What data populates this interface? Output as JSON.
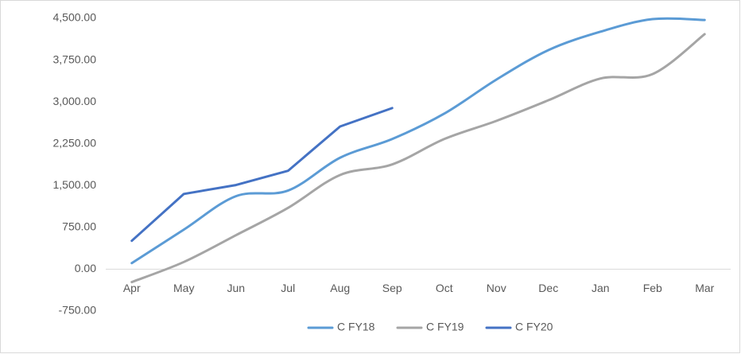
{
  "chart_data": {
    "type": "line",
    "categories": [
      "Apr",
      "May",
      "Jun",
      "Jul",
      "Aug",
      "Sep",
      "Oct",
      "Nov",
      "Dec",
      "Jan",
      "Feb",
      "Mar"
    ],
    "series": [
      {
        "name": "C FY18",
        "color": "#5b9bd5",
        "smooth": true,
        "values": [
          110,
          710,
          1310,
          1410,
          2000,
          2335,
          2790,
          3400,
          3930,
          4260,
          4485,
          4470
        ]
      },
      {
        "name": "C FY19",
        "color": "#a5a5a5",
        "smooth": true,
        "values": [
          -230,
          130,
          610,
          1100,
          1690,
          1880,
          2335,
          2660,
          3030,
          3420,
          3500,
          4215
        ]
      },
      {
        "name": "C FY20",
        "color": "#4472c4",
        "smooth": false,
        "values": [
          510,
          1350,
          1510,
          1765,
          2560,
          2890,
          null,
          null,
          null,
          null,
          null,
          null
        ]
      }
    ],
    "ylim": [
      -750,
      4500
    ],
    "yticks": [
      {
        "value": -750,
        "label": "-750.00"
      },
      {
        "value": 0,
        "label": "0.00"
      },
      {
        "value": 750,
        "label": "750.00"
      },
      {
        "value": 1500,
        "label": "1,500.00"
      },
      {
        "value": 2250,
        "label": "2,250.00"
      },
      {
        "value": 3000,
        "label": "3,000.00"
      },
      {
        "value": 3750,
        "label": "3,750.00"
      },
      {
        "value": 4500,
        "label": "4,500.00"
      }
    ],
    "grid": false,
    "legend": "bottom"
  }
}
